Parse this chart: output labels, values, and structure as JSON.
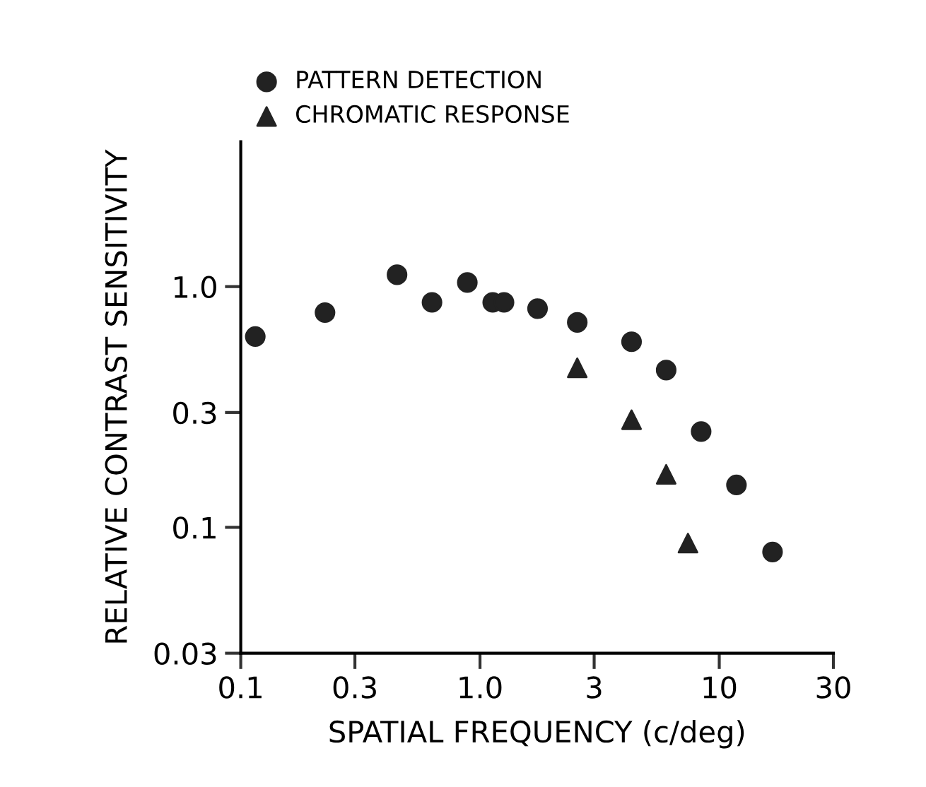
{
  "chart_data": {
    "type": "scatter",
    "xlabel": "SPATIAL FREQUENCY (c/deg)",
    "ylabel": "RELATIVE CONTRAST SENSITIVITY",
    "log": "xy",
    "xlim": [
      0.1,
      30
    ],
    "ylim": [
      0.03,
      4
    ],
    "xticks": [
      0.1,
      0.3,
      {
        "value": 1,
        "label": "1.0"
      },
      3,
      10,
      30
    ],
    "yticks": [
      0.03,
      0.1,
      0.3,
      {
        "value": 1,
        "label": "1.0"
      }
    ],
    "grid": false,
    "legend": "top left",
    "series": [
      {
        "name": "PATTERN DETECTION",
        "color": "#222222",
        "marker": "circle",
        "x": [
          0.115,
          0.225,
          0.45,
          0.63,
          0.885,
          1.13,
          1.26,
          1.74,
          2.55,
          4.3,
          6.0,
          8.4,
          11.8,
          16.7
        ],
        "values": [
          0.62,
          0.78,
          1.12,
          0.86,
          1.04,
          0.86,
          0.86,
          0.81,
          0.71,
          0.59,
          0.45,
          0.25,
          0.15,
          0.079
        ]
      },
      {
        "name": "CHROMATIC RESPONSE",
        "color": "#222222",
        "marker": "triangle",
        "x": [
          2.55,
          4.3,
          6.0,
          7.4
        ],
        "values": [
          0.46,
          0.28,
          0.166,
          0.086
        ]
      }
    ]
  }
}
